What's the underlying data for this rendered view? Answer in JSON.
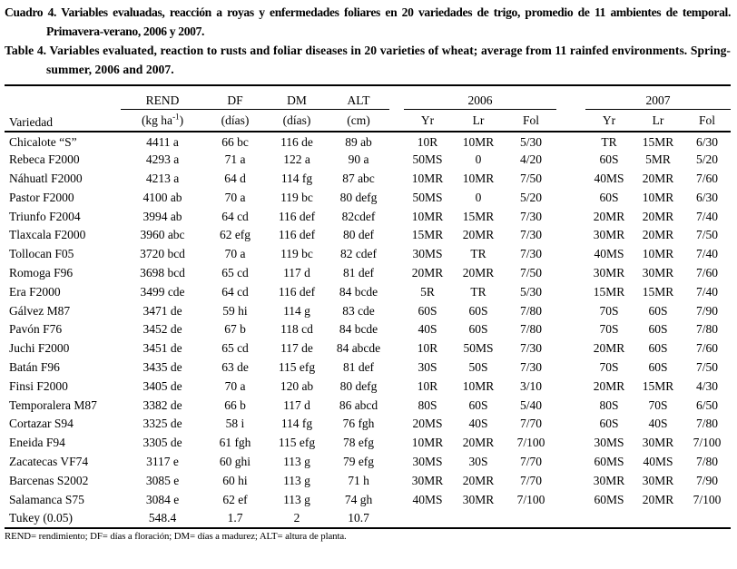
{
  "colors": {
    "background": "#ffffff",
    "text": "#000000",
    "rule": "#000000"
  },
  "captions": {
    "es": {
      "label": "Cuadro 4.",
      "text": "Variables evaluadas, reacción a royas y enfermedades foliares en 20 variedades de trigo, promedio de 11 ambientes de temporal. Primavera-verano, 2006 y 2007."
    },
    "en": {
      "label": "Table 4.",
      "text": "Variables evaluated, reaction to rusts and foliar diseases in 20 varieties of wheat; average from 11 rainfed environments. Spring-summer, 2006 and 2007."
    }
  },
  "table": {
    "header": {
      "variety": "Variedad",
      "rend": "REND",
      "df": "DF",
      "dm": "DM",
      "alt": "ALT",
      "year2006": "2006",
      "year2007": "2007",
      "rend_unit_prefix": "(kg ha",
      "rend_unit_sup": "-1",
      "rend_unit_suffix": ")",
      "df_unit": "(días)",
      "dm_unit": "(días)",
      "alt_unit": "(cm)",
      "yr_2006": "Yr",
      "lr_2006": "Lr",
      "fol_2006": "Fol",
      "yr_2007": "Yr",
      "lr_2007": "Lr",
      "fol_2007": "Fol"
    },
    "rows": [
      [
        "Chicalote “S”",
        "4411 a",
        "66 bc",
        "116 de",
        "89 ab",
        "10R",
        "10MR",
        "5/30",
        "TR",
        "15MR",
        "6/30"
      ],
      [
        "Rebeca F2000",
        "4293 a",
        "71 a",
        "122 a",
        "90 a",
        "50MS",
        "0",
        "4/20",
        "60S",
        "5MR",
        "5/20"
      ],
      [
        "Náhuatl F2000",
        "4213 a",
        "64 d",
        "114 fg",
        "87 abc",
        "10MR",
        "10MR",
        "7/50",
        "40MS",
        "20MR",
        "7/60"
      ],
      [
        "Pastor F2000",
        "4100 ab",
        "70 a",
        "119 bc",
        "80 defg",
        "50MS",
        "0",
        "5/20",
        "60S",
        "10MR",
        "6/30"
      ],
      [
        "Triunfo F2004",
        "3994 ab",
        "64 cd",
        "116 def",
        "82cdef",
        "10MR",
        "15MR",
        "7/30",
        "20MR",
        "20MR",
        "7/40"
      ],
      [
        "Tlaxcala F2000",
        "3960 abc",
        "62 efg",
        "116 def",
        "80 def",
        "15MR",
        "20MR",
        "7/30",
        "30MR",
        "20MR",
        "7/50"
      ],
      [
        "Tollocan F05",
        "3720 bcd",
        "70 a",
        "119 bc",
        "82 cdef",
        "30MS",
        "TR",
        "7/30",
        "40MS",
        "10MR",
        "7/40"
      ],
      [
        "Romoga F96",
        "3698 bcd",
        "65 cd",
        "117 d",
        "81 def",
        "20MR",
        "20MR",
        "7/50",
        "30MR",
        "30MR",
        "7/60"
      ],
      [
        "Era F2000",
        "3499 cde",
        "64 cd",
        "116 def",
        "84 bcde",
        "5R",
        "TR",
        "5/30",
        "15MR",
        "15MR",
        "7/40"
      ],
      [
        "Gálvez M87",
        "3471 de",
        "59 hi",
        "114 g",
        "83 cde",
        "60S",
        "60S",
        "7/80",
        "70S",
        "60S",
        "7/90"
      ],
      [
        "Pavón F76",
        "3452 de",
        "67 b",
        "118 cd",
        "84 bcde",
        "40S",
        "60S",
        "7/80",
        "70S",
        "60S",
        "7/80"
      ],
      [
        "Juchi F2000",
        "3451 de",
        "65 cd",
        "117 de",
        "84 abcde",
        "10R",
        "50MS",
        "7/30",
        "20MR",
        "60S",
        "7/60"
      ],
      [
        "Batán F96",
        "3435 de",
        "63 de",
        "115 efg",
        "81 def",
        "30S",
        "50S",
        "7/30",
        "70S",
        "60S",
        "7/50"
      ],
      [
        "Finsi F2000",
        "3405 de",
        "70 a",
        "120 ab",
        "80 defg",
        "10R",
        "10MR",
        "3/10",
        "20MR",
        "15MR",
        "4/30"
      ],
      [
        "Temporalera M87",
        "3382 de",
        "66 b",
        "117 d",
        "86 abcd",
        "80S",
        "60S",
        "5/40",
        "80S",
        "70S",
        "6/50"
      ],
      [
        "Cortazar S94",
        "3325 de",
        "58 i",
        "114 fg",
        "76 fgh",
        "20MS",
        "40S",
        "7/70",
        "60S",
        "40S",
        "7/80"
      ],
      [
        "Eneida F94",
        "3305 de",
        "61 fgh",
        "115 efg",
        "78 efg",
        "10MR",
        "20MR",
        "7/100",
        "30MS",
        "30MR",
        "7/100"
      ],
      [
        "Zacatecas VF74",
        "3117 e",
        "60 ghi",
        "113 g",
        "79 efg",
        "30MS",
        "30S",
        "7/70",
        "60MS",
        "40MS",
        "7/80"
      ],
      [
        "Barcenas S2002",
        "3085 e",
        "60 hi",
        "113 g",
        "71 h",
        "30MR",
        "20MR",
        "7/70",
        "30MR",
        "30MR",
        "7/90"
      ],
      [
        "Salamanca S75",
        "3084 e",
        "62 ef",
        "113 g",
        "74 gh",
        "40MS",
        "30MR",
        "7/100",
        "60MS",
        "20MR",
        "7/100"
      ],
      [
        "Tukey (0.05)",
        "548.4",
        "1.7",
        "2",
        "10.7",
        "",
        "",
        "",
        "",
        "",
        ""
      ]
    ]
  },
  "footnote": "REND= rendimiento; DF= días a floración; DM= días a madurez; ALT= altura de planta."
}
